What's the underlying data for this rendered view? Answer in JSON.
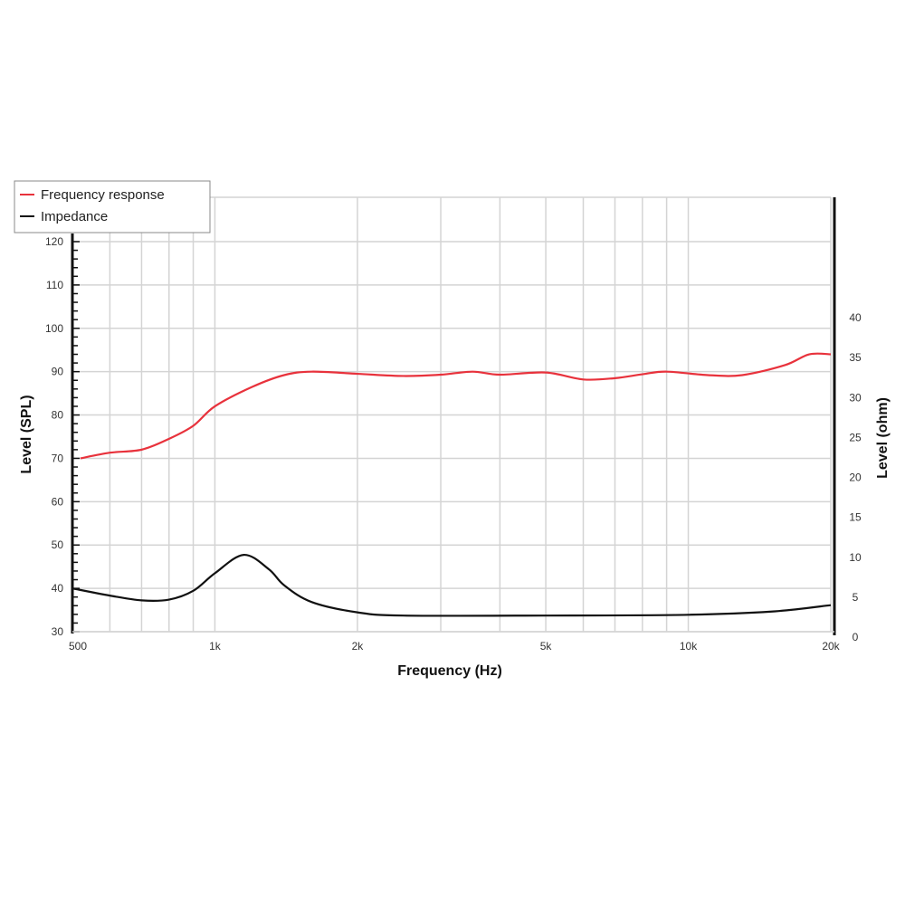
{
  "chart_data": {
    "type": "line",
    "xlabel": "Frequency (Hz)",
    "ylabel": "Level (SPL)",
    "y2label": "Level (ohm)",
    "xscale": "log",
    "xlim": [
      500,
      20000
    ],
    "ylim": [
      30,
      120
    ],
    "y2lim": [
      0,
      40
    ],
    "x_ticks": [
      {
        "v": 500,
        "label": "500"
      },
      {
        "v": 1000,
        "label": "1k"
      },
      {
        "v": 2000,
        "label": "2k"
      },
      {
        "v": 5000,
        "label": "5k"
      },
      {
        "v": 10000,
        "label": "10k"
      },
      {
        "v": 20000,
        "label": "20k"
      }
    ],
    "x_grid": [
      600,
      700,
      800,
      900,
      1000,
      2000,
      3000,
      4000,
      5000,
      6000,
      7000,
      8000,
      9000,
      10000,
      20000
    ],
    "y_ticks": [
      30,
      40,
      50,
      60,
      70,
      80,
      90,
      100,
      110,
      120
    ],
    "y2_ticks": [
      0,
      5,
      10,
      15,
      20,
      25,
      30,
      35,
      40
    ],
    "grid": true,
    "legend_position": "top-left",
    "series": [
      {
        "name": "Frequency response",
        "axis": "left",
        "color": "#e8323c",
        "x": [
          520,
          600,
          700,
          800,
          900,
          1000,
          1200,
          1400,
          1600,
          2000,
          2500,
          3000,
          3500,
          4000,
          5000,
          6000,
          7000,
          8000,
          9000,
          11000,
          13000,
          16000,
          18000,
          20000
        ],
        "y": [
          70,
          71.3,
          72,
          74.5,
          77.5,
          82,
          86.5,
          89.2,
          90,
          89.5,
          89,
          89.3,
          90,
          89.3,
          89.8,
          88.2,
          88.5,
          89.4,
          90,
          89.2,
          89.2,
          91.5,
          94,
          94
        ]
      },
      {
        "name": "Impedance",
        "axis": "right",
        "color": "#111111",
        "x": [
          500,
          600,
          700,
          800,
          900,
          1000,
          1150,
          1300,
          1400,
          1600,
          2000,
          2500,
          5000,
          10000,
          15000,
          20000
        ],
        "y": [
          6.1,
          5.2,
          4.6,
          4.7,
          5.8,
          8,
          10.3,
          8.5,
          6.5,
          4.4,
          3.1,
          2.7,
          2.7,
          2.8,
          3.2,
          4.0
        ]
      }
    ]
  }
}
